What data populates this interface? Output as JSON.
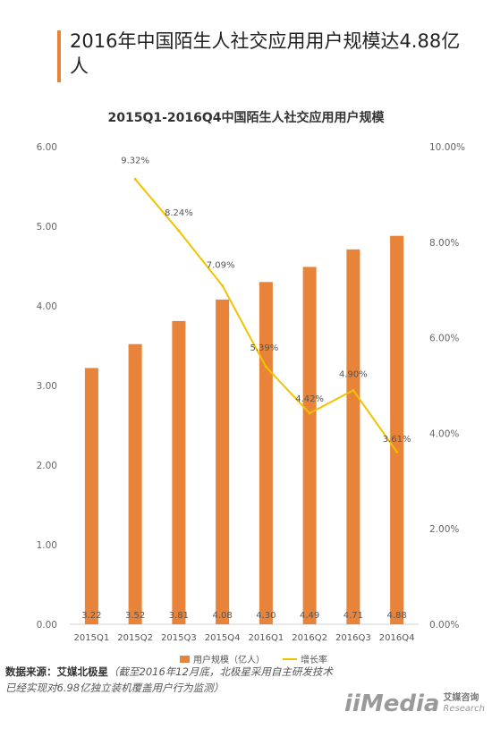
{
  "heading": "2016年中国陌生人社交应用用户规模达4.88亿人",
  "chart_data": {
    "type": "bar+line",
    "title": "2015Q1-2016Q4中国陌生人社交应用用户规模",
    "categories": [
      "2015Q1",
      "2015Q2",
      "2015Q3",
      "2015Q4",
      "2016Q1",
      "2016Q2",
      "2016Q3",
      "2016Q4"
    ],
    "series": [
      {
        "name": "用户规模（亿人）",
        "type": "bar",
        "axis": "left",
        "color": "#e8833a",
        "values": [
          3.22,
          3.52,
          3.81,
          4.08,
          4.3,
          4.49,
          4.71,
          4.88
        ],
        "labels": [
          "3.22",
          "3.52",
          "3.81",
          "4.08",
          "4.30",
          "4.49",
          "4.71",
          "4.88"
        ]
      },
      {
        "name": "增长率",
        "type": "line",
        "axis": "right",
        "color": "#f2c200",
        "values": [
          null,
          9.32,
          8.24,
          7.09,
          5.39,
          4.42,
          4.9,
          3.61
        ],
        "labels": [
          "",
          "9.32%",
          "8.24%",
          "7.09%",
          "5.39%",
          "4.42%",
          "4.90%",
          "3.61%"
        ]
      }
    ],
    "yleft_ticks": [
      "0.00",
      "1.00",
      "2.00",
      "3.00",
      "4.00",
      "5.00",
      "6.00"
    ],
    "yleft_lim": [
      0,
      6
    ],
    "yright_ticks": [
      "0.00%",
      "2.00%",
      "4.00%",
      "6.00%",
      "8.00%",
      "10.00%"
    ],
    "yright_lim": [
      0,
      10
    ],
    "legend_position": "bottom",
    "grid": false
  },
  "source": {
    "label": "数据来源：艾媒北极星",
    "note": "（截至2016年12月底，北极星采用自主研发技术已经实现对6.98亿独立装机覆盖用户行为监测）"
  },
  "logo": {
    "mark": "iiMedia",
    "cn": "艾媒咨询",
    "en": "Research"
  }
}
